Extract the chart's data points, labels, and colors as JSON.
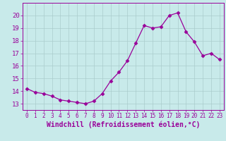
{
  "x": [
    0,
    1,
    2,
    3,
    4,
    5,
    6,
    7,
    8,
    9,
    10,
    11,
    12,
    13,
    14,
    15,
    16,
    17,
    18,
    19,
    20,
    21,
    22,
    23
  ],
  "y": [
    14.2,
    13.9,
    13.8,
    13.6,
    13.3,
    13.2,
    13.1,
    13.0,
    13.2,
    13.8,
    14.8,
    15.5,
    16.4,
    17.8,
    19.2,
    19.0,
    19.1,
    20.0,
    20.2,
    18.7,
    17.9,
    16.8,
    17.0,
    16.5
  ],
  "line_color": "#990099",
  "marker": "D",
  "marker_size": 2.5,
  "bg_color": "#c8eaea",
  "grid_color": "#aacccc",
  "xlabel": "Windchill (Refroidissement éolien,°C)",
  "xlim": [
    -0.5,
    23.5
  ],
  "ylim": [
    12.5,
    21.0
  ],
  "yticks": [
    13,
    14,
    15,
    16,
    17,
    18,
    19,
    20
  ],
  "xticks": [
    0,
    1,
    2,
    3,
    4,
    5,
    6,
    7,
    8,
    9,
    10,
    11,
    12,
    13,
    14,
    15,
    16,
    17,
    18,
    19,
    20,
    21,
    22,
    23
  ],
  "tick_color": "#990099",
  "label_color": "#990099",
  "tick_fontsize": 5.5,
  "ytick_fontsize": 6.5,
  "label_fontsize": 7.0
}
